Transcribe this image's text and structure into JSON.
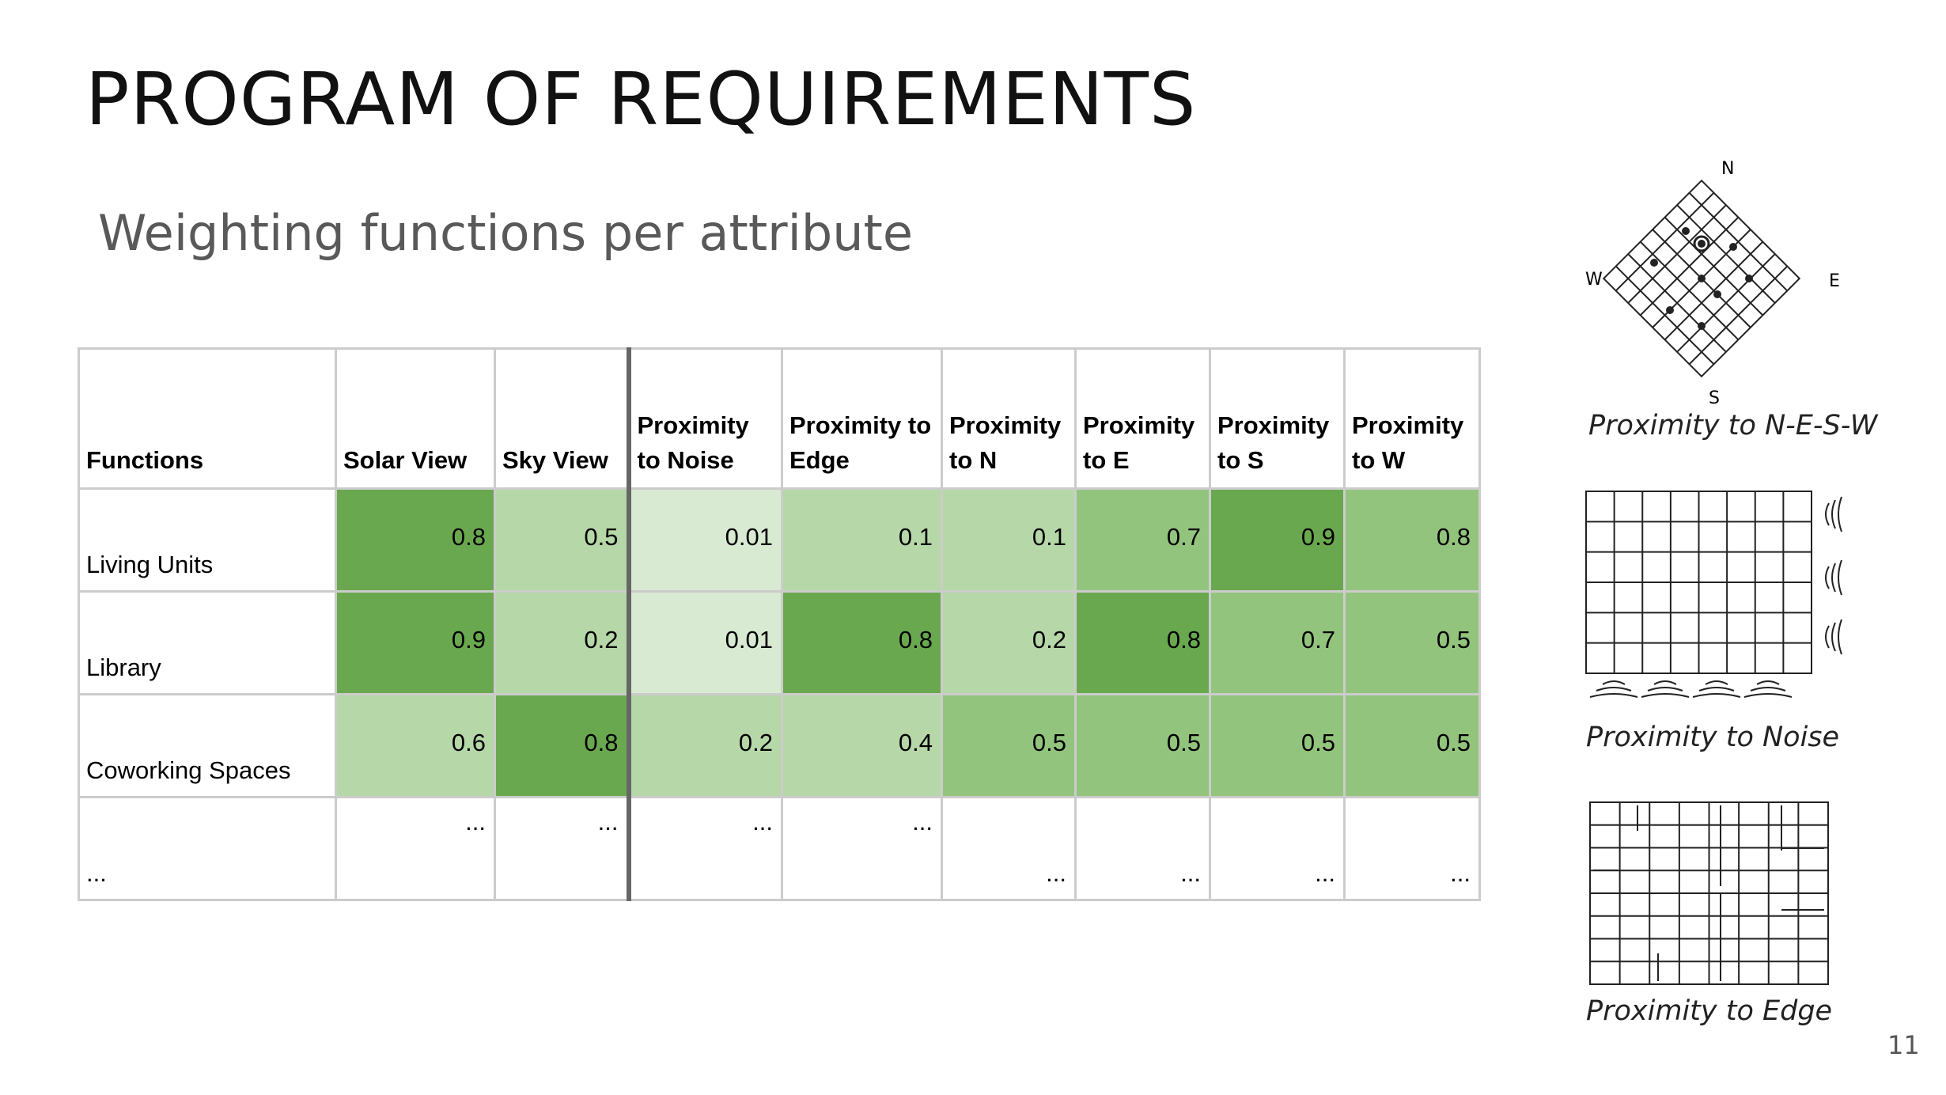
{
  "slide": {
    "title": "PROGRAM OF REQUIREMENTS",
    "subtitle": "Weighting functions per attribute",
    "page_number": "11"
  },
  "table": {
    "header": [
      "Functions",
      "Solar View",
      "Sky View",
      "Proximity to Noise",
      "Proximity to Edge",
      "Proximity to N",
      "Proximity to E",
      "Proximity to S",
      "Proximity to W"
    ],
    "rows": [
      {
        "label": "Living Units",
        "cells": [
          0.8,
          0.5,
          0.01,
          0.1,
          0.1,
          0.7,
          0.9,
          0.8
        ],
        "fills": [
          "#6aa84f",
          "#b6d7a8",
          "#d9ead3",
          "#b6d7a8",
          "#b6d7a8",
          "#93c47d",
          "#6aa84f",
          "#93c47d"
        ]
      },
      {
        "label": "Library",
        "cells": [
          0.9,
          0.2,
          0.01,
          0.8,
          0.2,
          0.8,
          0.7,
          0.5
        ],
        "fills": [
          "#6aa84f",
          "#b6d7a8",
          "#d9ead3",
          "#6aa84f",
          "#b6d7a8",
          "#6aa84f",
          "#93c47d",
          "#93c47d"
        ]
      },
      {
        "label": "Coworking Spaces",
        "cells": [
          0.6,
          0.8,
          0.2,
          0.4,
          0.5,
          0.5,
          0.5,
          0.5
        ],
        "fills": [
          "#b6d7a8",
          "#6aa84f",
          "#b6d7a8",
          "#b6d7a8",
          "#93c47d",
          "#93c47d",
          "#93c47d",
          "#93c47d"
        ]
      },
      {
        "label": "...",
        "cells": [
          "...",
          "...",
          "...",
          "...",
          "...",
          "...",
          "...",
          "..."
        ]
      }
    ]
  },
  "figures": [
    {
      "caption": "Proximity to N-E-S-W",
      "labels": [
        "N",
        "E",
        "S",
        "W"
      ]
    },
    {
      "caption": "Proximity to Noise"
    },
    {
      "caption": "Proximity to Edge"
    }
  ]
}
